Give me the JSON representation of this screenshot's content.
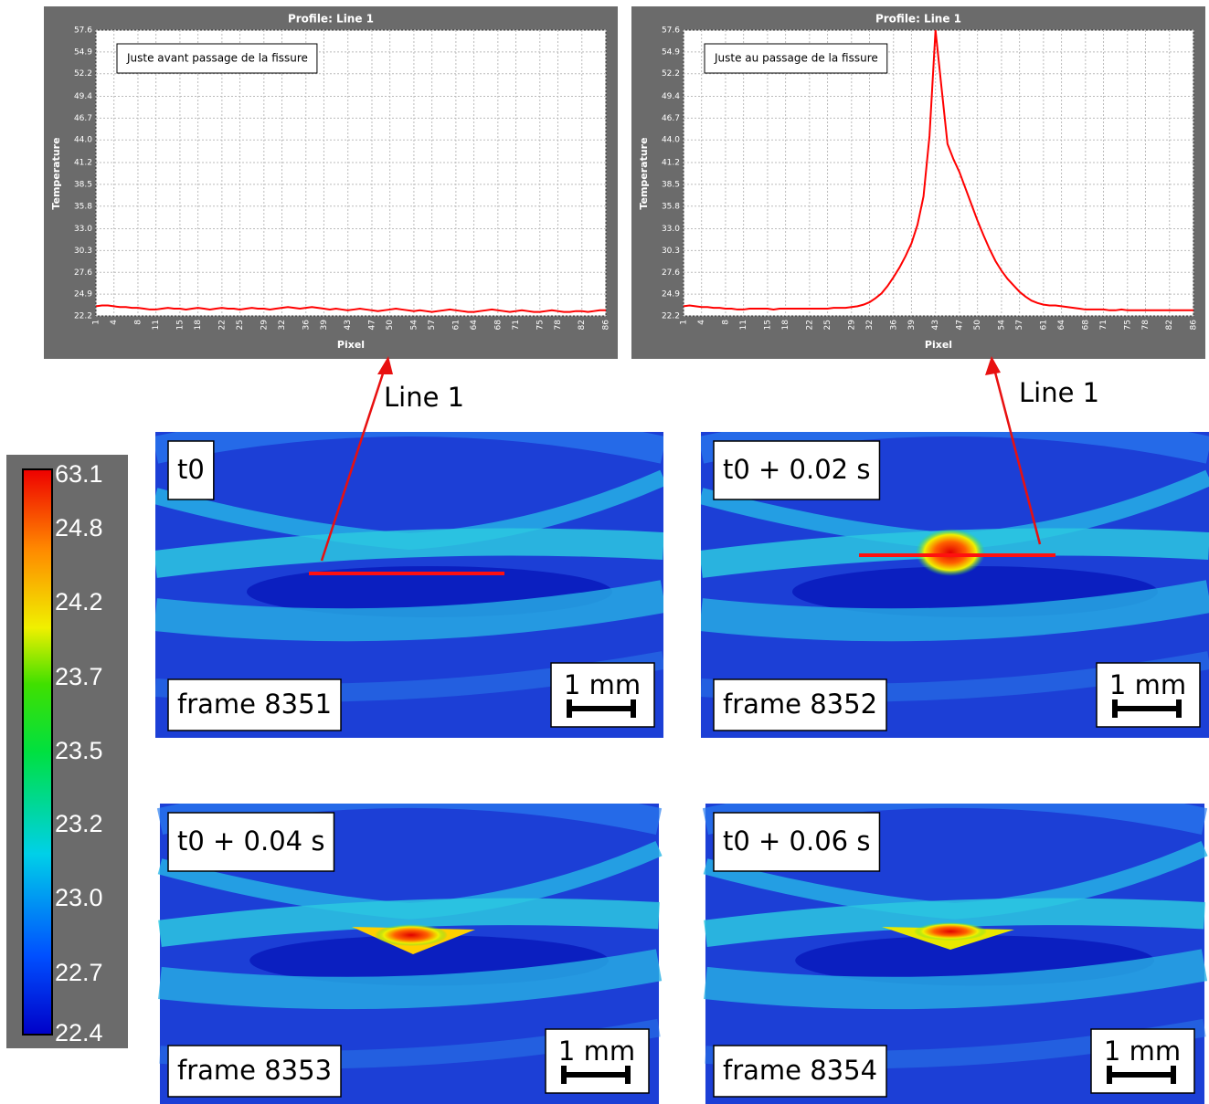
{
  "chart_data": [
    {
      "type": "line",
      "title": "Profile: Line 1",
      "xlabel": "Pixel",
      "ylabel": "Temperature",
      "annotation": "Juste avant passage de la fissure",
      "color": "#ff0000",
      "grid": true,
      "xlim": [
        1,
        86
      ],
      "ylim": [
        22.2,
        57.6
      ],
      "xticks": [
        1,
        4,
        8,
        11,
        15,
        18,
        22,
        25,
        29,
        32,
        36,
        39,
        43,
        47,
        50,
        54,
        57,
        61,
        64,
        68,
        71,
        75,
        78,
        82,
        86
      ],
      "yticks": [
        22.2,
        24.9,
        27.6,
        30.3,
        {
          "value": 33.0,
          "label": "33.0"
        },
        35.8,
        38.5,
        41.2,
        {
          "value": 44.0,
          "label": "44.0"
        },
        46.7,
        49.4,
        52.2,
        54.9,
        57.6
      ],
      "x": [
        1,
        2,
        3,
        4,
        5,
        6,
        7,
        8,
        9,
        10,
        11,
        12,
        13,
        14,
        15,
        16,
        17,
        18,
        19,
        20,
        21,
        22,
        23,
        24,
        25,
        26,
        27,
        28,
        29,
        30,
        31,
        32,
        33,
        34,
        35,
        36,
        37,
        38,
        39,
        40,
        41,
        42,
        43,
        44,
        45,
        46,
        47,
        48,
        49,
        50,
        51,
        52,
        53,
        54,
        55,
        56,
        57,
        58,
        59,
        60,
        61,
        62,
        63,
        64,
        65,
        66,
        67,
        68,
        69,
        70,
        71,
        72,
        73,
        74,
        75,
        76,
        77,
        78,
        79,
        80,
        81,
        82,
        83,
        84,
        85,
        86
      ],
      "values": [
        23.4,
        23.5,
        23.5,
        23.4,
        23.3,
        23.3,
        23.2,
        23.2,
        23.1,
        23.0,
        23.0,
        23.1,
        23.2,
        23.1,
        23.1,
        23.0,
        23.1,
        23.2,
        23.1,
        23.0,
        23.1,
        23.2,
        23.1,
        23.1,
        23.0,
        23.1,
        23.2,
        23.1,
        23.1,
        23.0,
        23.1,
        23.2,
        23.3,
        23.2,
        23.1,
        23.2,
        23.3,
        23.2,
        23.1,
        23.0,
        23.1,
        23.0,
        22.9,
        23.0,
        23.1,
        23.0,
        22.9,
        22.8,
        22.9,
        23.0,
        23.1,
        23.0,
        22.9,
        22.8,
        22.9,
        22.8,
        22.7,
        22.8,
        22.9,
        23.0,
        22.9,
        22.8,
        22.7,
        22.7,
        22.8,
        22.9,
        23.0,
        22.9,
        22.8,
        22.7,
        22.8,
        22.9,
        22.8,
        22.7,
        22.7,
        22.8,
        22.9,
        22.8,
        22.7,
        22.7,
        22.8,
        22.8,
        22.7,
        22.8,
        22.9,
        22.9
      ]
    },
    {
      "type": "line",
      "title": "Profile: Line 1",
      "xlabel": "Pixel",
      "ylabel": "Temperature",
      "annotation": "Juste au passage de la fissure",
      "color": "#ff0000",
      "grid": true,
      "xlim": [
        1,
        86
      ],
      "ylim": [
        22.2,
        57.6
      ],
      "xticks": [
        1,
        4,
        8,
        11,
        15,
        18,
        22,
        25,
        29,
        32,
        36,
        39,
        43,
        47,
        50,
        54,
        57,
        61,
        64,
        68,
        71,
        75,
        78,
        82,
        86
      ],
      "yticks": [
        22.2,
        24.9,
        27.6,
        30.3,
        {
          "value": 33.0,
          "label": "33.0"
        },
        35.8,
        38.5,
        41.2,
        {
          "value": 44.0,
          "label": "44.0"
        },
        46.7,
        49.4,
        52.2,
        54.9,
        57.6
      ],
      "x": [
        1,
        2,
        3,
        4,
        5,
        6,
        7,
        8,
        9,
        10,
        11,
        12,
        13,
        14,
        15,
        16,
        17,
        18,
        19,
        20,
        21,
        22,
        23,
        24,
        25,
        26,
        27,
        28,
        29,
        30,
        31,
        32,
        33,
        34,
        35,
        36,
        37,
        38,
        39,
        40,
        41,
        42,
        43,
        44,
        45,
        46,
        47,
        48,
        49,
        50,
        51,
        52,
        53,
        54,
        55,
        56,
        57,
        58,
        59,
        60,
        61,
        62,
        63,
        64,
        65,
        66,
        67,
        68,
        69,
        70,
        71,
        72,
        73,
        74,
        75,
        76,
        77,
        78,
        79,
        80,
        81,
        82,
        83,
        84,
        85,
        86
      ],
      "values": [
        23.4,
        23.5,
        23.4,
        23.3,
        23.3,
        23.2,
        23.2,
        23.1,
        23.1,
        23.0,
        23.0,
        23.1,
        23.1,
        23.1,
        23.1,
        23.0,
        23.1,
        23.1,
        23.1,
        23.1,
        23.1,
        23.1,
        23.1,
        23.1,
        23.1,
        23.2,
        23.2,
        23.2,
        23.3,
        23.4,
        23.6,
        23.9,
        24.4,
        25.0,
        25.9,
        27.0,
        28.2,
        29.6,
        31.2,
        33.5,
        37.0,
        44.5,
        57.6,
        50.5,
        43.5,
        41.6,
        40.0,
        38.0,
        36.0,
        34.0,
        32.2,
        30.5,
        29.0,
        27.8,
        26.8,
        26.0,
        25.2,
        24.6,
        24.1,
        23.8,
        23.6,
        23.5,
        23.5,
        23.4,
        23.3,
        23.2,
        23.1,
        23.0,
        23.0,
        23.0,
        23.0,
        22.9,
        22.9,
        23.0,
        22.9,
        22.9,
        22.9,
        22.9,
        22.9,
        22.9,
        22.9,
        22.9,
        22.9,
        22.9,
        22.9,
        22.9
      ]
    }
  ],
  "arrows": [
    {
      "label": "Line 1"
    },
    {
      "label": "Line 1"
    }
  ],
  "colorbar": {
    "labels": [
      "63.1",
      "24.8",
      "24.2",
      "23.7",
      "23.5",
      "23.2",
      "23.0",
      "22.7",
      "22.4"
    ]
  },
  "panels": [
    {
      "time": "t0",
      "frame": "frame 8351",
      "scale": "1 mm"
    },
    {
      "time": "t0 + 0.02 s",
      "frame": "frame 8352",
      "scale": "1 mm"
    },
    {
      "time": "t0 + 0.04 s",
      "frame": "frame 8353",
      "scale": "1 mm"
    },
    {
      "time": "t0 + 0.06 s",
      "frame": "frame 8354",
      "scale": "1 mm"
    }
  ]
}
